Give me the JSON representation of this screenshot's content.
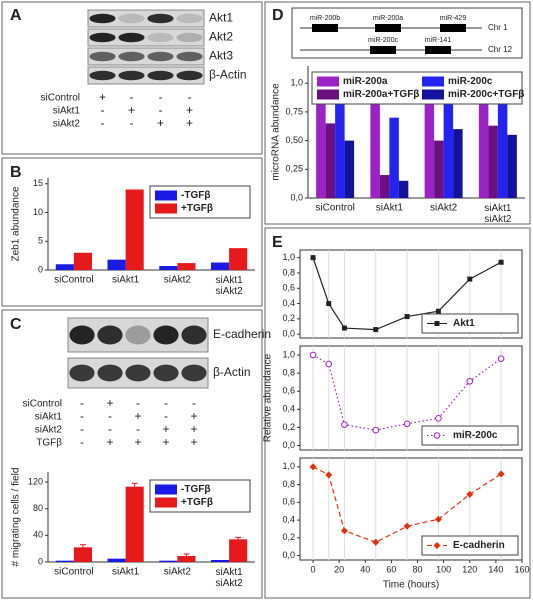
{
  "panel_labels": [
    "A",
    "B",
    "C",
    "D",
    "E"
  ],
  "blot_a": {
    "bands": [
      "Akt1",
      "Akt2",
      "Akt3",
      "β-Actin"
    ],
    "rows": [
      {
        "label": "siControl",
        "marks": [
          "+",
          "-",
          "-",
          "-"
        ]
      },
      {
        "label": "siAkt1",
        "marks": [
          "-",
          "+",
          "-",
          "+"
        ]
      },
      {
        "label": "siAkt2",
        "marks": [
          "-",
          "-",
          "+",
          "+"
        ]
      }
    ]
  },
  "blot_c": {
    "bands": [
      "E-cadherin",
      "β-Actin"
    ],
    "rows": [
      {
        "label": "siControl",
        "marks": [
          "-",
          "+",
          "-",
          "-",
          "-"
        ]
      },
      {
        "label": "siAkt1",
        "marks": [
          "-",
          "-",
          "+",
          "-",
          "+"
        ]
      },
      {
        "label": "siAkt2",
        "marks": [
          "-",
          "-",
          "-",
          "+",
          "+"
        ]
      },
      {
        "label": "TGFβ",
        "marks": [
          "-",
          "+",
          "+",
          "+",
          "+"
        ]
      }
    ]
  },
  "genome_map": {
    "chromosomes": [
      {
        "name": "Chr 1",
        "genes": [
          "miR-200b",
          "miR-200a",
          "miR-429"
        ]
      },
      {
        "name": "Chr 12",
        "genes": [
          "miR-200c",
          "miR-141"
        ]
      }
    ]
  },
  "chart_data": [
    {
      "type": "bar",
      "ylabel": "Zeb1 abundance",
      "categories": [
        "siControl",
        "siAkt1",
        "siAkt2",
        "siAkt1\nsiAkt2"
      ],
      "series": [
        {
          "name": "-TGFβ",
          "color": "#1a1ae6",
          "values": [
            1.0,
            1.8,
            0.7,
            1.3
          ]
        },
        {
          "name": "+TGFβ",
          "color": "#e61a1a",
          "values": [
            3.0,
            14.0,
            1.2,
            3.8
          ]
        }
      ],
      "ylim": [
        0,
        16
      ],
      "yticks": [
        0,
        5,
        10,
        15
      ],
      "legend": "upper right"
    },
    {
      "type": "bar",
      "ylabel": "# migrating cells / field",
      "categories": [
        "siControl",
        "siAkt1",
        "siAkt2",
        "siAkt1\nsiAkt2"
      ],
      "series": [
        {
          "name": "-TGFβ",
          "color": "#1a1ae6",
          "values": [
            2,
            5,
            2,
            3
          ]
        },
        {
          "name": "+TGFβ",
          "color": "#e61a1a",
          "values": [
            22,
            113,
            9,
            34
          ],
          "errors": [
            4,
            5,
            3,
            3
          ]
        }
      ],
      "ylim": [
        0,
        135
      ],
      "yticks": [
        0,
        40,
        80,
        120
      ],
      "legend": "upper right"
    },
    {
      "type": "bar",
      "ylabel": "microRNA abundance",
      "categories": [
        "siControl",
        "siAkt1",
        "siAkt2",
        "siAkt1\nsiAkt2"
      ],
      "series": [
        {
          "name": "miR-200a",
          "color": "#9b22c4",
          "values": [
            1.0,
            0.85,
            1.0,
            1.0
          ]
        },
        {
          "name": "miR-200a+TGFβ",
          "color": "#6b1080",
          "values": [
            0.65,
            0.2,
            0.5,
            0.63
          ]
        },
        {
          "name": "miR-200c",
          "color": "#2424f2",
          "values": [
            1.0,
            0.7,
            1.0,
            0.95
          ]
        },
        {
          "name": "miR-200c+TGFβ",
          "color": "#12129a",
          "values": [
            0.5,
            0.15,
            0.6,
            0.55
          ]
        }
      ],
      "ylim": [
        0,
        1.15
      ],
      "yticks": [
        {
          "value": 0,
          "label": "0,0"
        },
        {
          "value": 0.25,
          "label": "0,25"
        },
        {
          "value": 0.5,
          "label": "0,50"
        },
        {
          "value": 0.75,
          "label": "0,75"
        },
        {
          "value": 1,
          "label": "1,0"
        }
      ],
      "legend": "upper center"
    },
    {
      "type": "line",
      "x": [
        0,
        12,
        24,
        48,
        72,
        96,
        120,
        144
      ],
      "series": [
        {
          "name": "Akt1",
          "color": "#222222",
          "dash": "solid",
          "marker": "square",
          "values": [
            1.0,
            0.4,
            0.08,
            0.06,
            0.23,
            0.3,
            0.72,
            0.94
          ]
        }
      ],
      "xlim": [
        -10,
        160
      ],
      "ylim": [
        -0.05,
        1.1
      ],
      "yticks": [
        {
          "value": 0,
          "label": "0,0"
        },
        {
          "value": 0.2,
          "label": "0,2"
        },
        {
          "value": 0.4,
          "label": "0,4"
        },
        {
          "value": 0.6,
          "label": "0,6"
        },
        {
          "value": 0.8,
          "label": "0,8"
        },
        {
          "value": 1,
          "label": "1,0"
        }
      ],
      "grid": true,
      "legend": "lower right"
    },
    {
      "type": "line",
      "ylabel": "Relative abundance",
      "x": [
        0,
        12,
        24,
        48,
        72,
        96,
        120,
        144
      ],
      "series": [
        {
          "name": "miR-200c",
          "color": "#a020c0",
          "dash": "dotted",
          "marker": "circle",
          "values": [
            1.0,
            0.9,
            0.23,
            0.17,
            0.24,
            0.3,
            0.71,
            0.96
          ]
        }
      ],
      "xlim": [
        -10,
        160
      ],
      "ylim": [
        -0.05,
        1.1
      ],
      "yticks": [
        {
          "value": 0,
          "label": "0,0"
        },
        {
          "value": 0.2,
          "label": "0,2"
        },
        {
          "value": 0.4,
          "label": "0,4"
        },
        {
          "value": 0.6,
          "label": "0,6"
        },
        {
          "value": 0.8,
          "label": "0,8"
        },
        {
          "value": 1,
          "label": "1,0"
        }
      ],
      "grid": true,
      "legend": "lower right"
    },
    {
      "type": "line",
      "xlabel": "Time (hours)",
      "x": [
        0,
        12,
        24,
        48,
        72,
        96,
        120,
        144
      ],
      "series": [
        {
          "name": "E-cadherin",
          "color": "#e03010",
          "dash": "dashed",
          "marker": "diamond",
          "values": [
            1.0,
            0.91,
            0.28,
            0.15,
            0.33,
            0.41,
            0.69,
            0.92
          ]
        }
      ],
      "xlim": [
        -10,
        160
      ],
      "xticks": [
        0,
        20,
        40,
        60,
        80,
        100,
        120,
        140,
        160
      ],
      "ylim": [
        -0.05,
        1.1
      ],
      "yticks": [
        {
          "value": 0,
          "label": "0,0"
        },
        {
          "value": 0.2,
          "label": "0,2"
        },
        {
          "value": 0.4,
          "label": "0,4"
        },
        {
          "value": 0.6,
          "label": "0,6"
        },
        {
          "value": 0.8,
          "label": "0,8"
        },
        {
          "value": 1,
          "label": "1,0"
        }
      ],
      "grid": true,
      "legend": "lower right"
    }
  ]
}
